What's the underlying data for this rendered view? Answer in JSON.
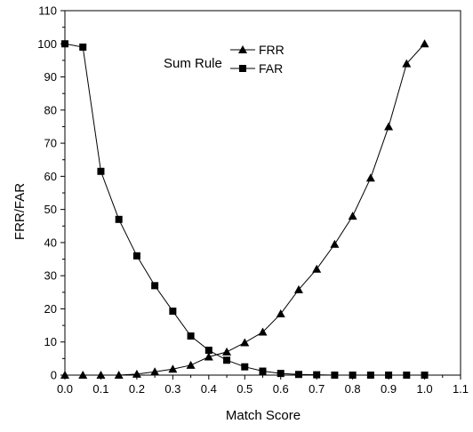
{
  "chart_data": {
    "type": "line",
    "title": "Sum Rule",
    "xlabel": "Match Score",
    "ylabel": "FRR/FAR",
    "xlim": [
      0.0,
      1.1
    ],
    "ylim": [
      0,
      110
    ],
    "x_ticks": [
      "0.0",
      "0.1",
      "0.2",
      "0.3",
      "0.4",
      "0.5",
      "0.6",
      "0.7",
      "0.8",
      "0.9",
      "1.0",
      "1.1"
    ],
    "y_ticks": [
      "0",
      "10",
      "20",
      "30",
      "40",
      "50",
      "60",
      "70",
      "80",
      "90",
      "100",
      "110"
    ],
    "grid": false,
    "legend_placement": "top-center",
    "x": [
      0.0,
      0.05,
      0.1,
      0.15,
      0.2,
      0.25,
      0.3,
      0.35,
      0.4,
      0.45,
      0.5,
      0.55,
      0.6,
      0.65,
      0.7,
      0.75,
      0.8,
      0.85,
      0.9,
      0.95,
      1.0
    ],
    "series": [
      {
        "name": "FRR",
        "marker": "triangle",
        "color": "#000000",
        "values": [
          0,
          0,
          0,
          0,
          0.3,
          1.0,
          1.8,
          3.0,
          5.5,
          7.0,
          9.8,
          13.0,
          18.5,
          25.8,
          32.0,
          39.5,
          48.0,
          59.5,
          75.0,
          94.0,
          100.0
        ]
      },
      {
        "name": "FAR",
        "marker": "square",
        "color": "#000000",
        "values": [
          100.0,
          99.0,
          61.5,
          47.0,
          36.0,
          27.0,
          19.3,
          11.8,
          7.5,
          4.5,
          2.5,
          1.2,
          0.5,
          0.2,
          0.1,
          0,
          0,
          0,
          0,
          0,
          0
        ]
      }
    ]
  }
}
